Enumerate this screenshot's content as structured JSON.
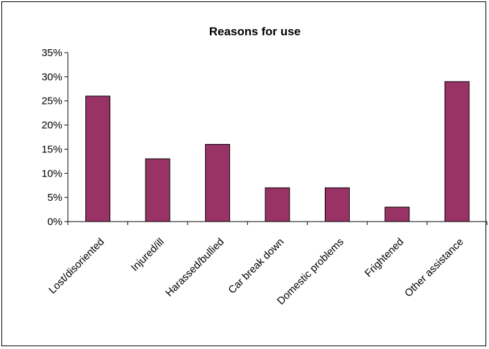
{
  "chart_data": {
    "type": "bar",
    "title": "Reasons for use",
    "xlabel": "",
    "ylabel": "",
    "categories": [
      "Lost/disoriented",
      "Injured/ill",
      "Harassed/bullied",
      "Car break down",
      "Domestic problems",
      "Frightened",
      "Other assistance"
    ],
    "values": [
      0.26,
      0.13,
      0.16,
      0.07,
      0.07,
      0.03,
      0.29
    ],
    "ylim": [
      0,
      0.35
    ],
    "yticks": [
      0,
      0.05,
      0.1,
      0.15,
      0.2,
      0.25,
      0.3,
      0.35
    ],
    "ytick_labels": [
      "0%",
      "5%",
      "10%",
      "15%",
      "20%",
      "25%",
      "30%",
      "35%"
    ],
    "grid": false,
    "legend": "none",
    "bar_color": "#993366"
  }
}
